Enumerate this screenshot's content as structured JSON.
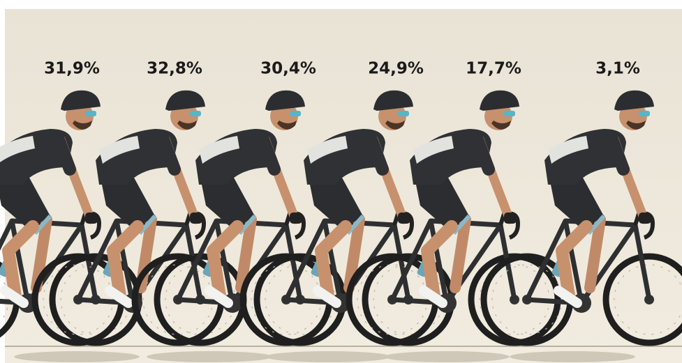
{
  "labels": [
    "31,9%",
    "32,8%",
    "30,4%",
    "24,9%",
    "17,7%",
    "3,1%"
  ]
}
